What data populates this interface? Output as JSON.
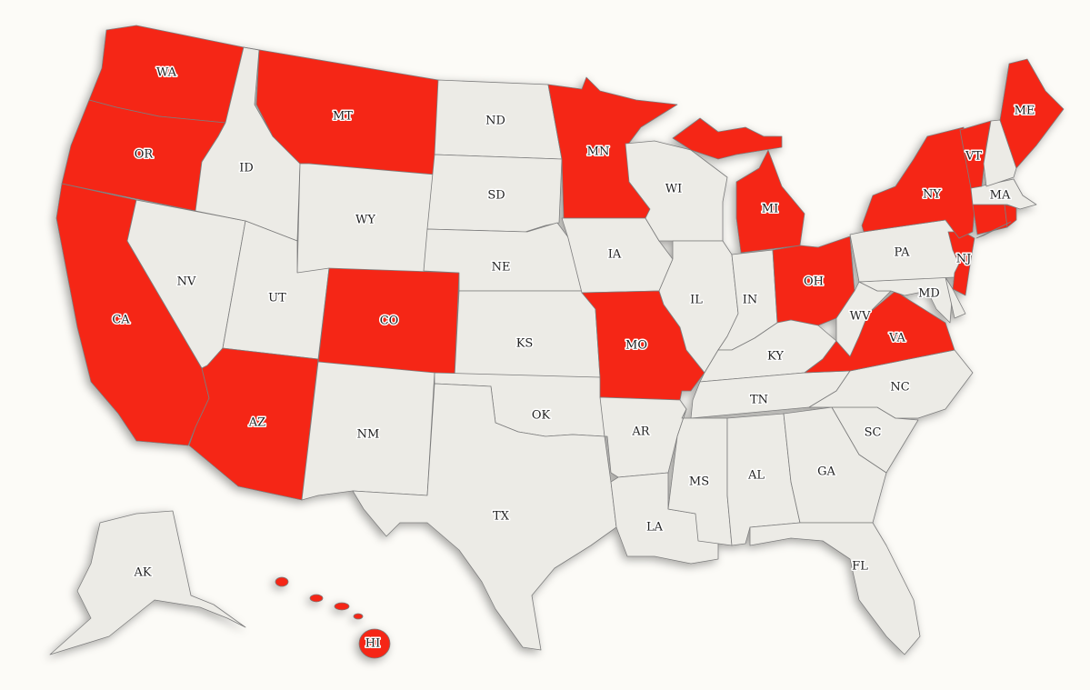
{
  "map": {
    "colors": {
      "selected": "#f52718",
      "unselected": "#ecebe6",
      "border": "#7d7d7d",
      "background": "#fcfbf7"
    },
    "states": [
      {
        "code": "WA",
        "label": "WA",
        "selected": true
      },
      {
        "code": "OR",
        "label": "OR",
        "selected": true
      },
      {
        "code": "CA",
        "label": "CA",
        "selected": true
      },
      {
        "code": "NV",
        "label": "NV",
        "selected": false
      },
      {
        "code": "ID",
        "label": "ID",
        "selected": false
      },
      {
        "code": "MT",
        "label": "MT",
        "selected": true
      },
      {
        "code": "WY",
        "label": "WY",
        "selected": false
      },
      {
        "code": "UT",
        "label": "UT",
        "selected": false
      },
      {
        "code": "CO",
        "label": "CO",
        "selected": true
      },
      {
        "code": "AZ",
        "label": "AZ",
        "selected": true
      },
      {
        "code": "NM",
        "label": "NM",
        "selected": false
      },
      {
        "code": "ND",
        "label": "ND",
        "selected": false
      },
      {
        "code": "SD",
        "label": "SD",
        "selected": false
      },
      {
        "code": "NE",
        "label": "NE",
        "selected": false
      },
      {
        "code": "KS",
        "label": "KS",
        "selected": false
      },
      {
        "code": "OK",
        "label": "OK",
        "selected": false
      },
      {
        "code": "TX",
        "label": "TX",
        "selected": false
      },
      {
        "code": "MN",
        "label": "MN",
        "selected": true
      },
      {
        "code": "IA",
        "label": "IA",
        "selected": false
      },
      {
        "code": "MO",
        "label": "MO",
        "selected": true
      },
      {
        "code": "AR",
        "label": "AR",
        "selected": false
      },
      {
        "code": "LA",
        "label": "LA",
        "selected": false
      },
      {
        "code": "WI",
        "label": "WI",
        "selected": false
      },
      {
        "code": "IL",
        "label": "IL",
        "selected": false
      },
      {
        "code": "MI",
        "label": "MI",
        "selected": true
      },
      {
        "code": "IN",
        "label": "IN",
        "selected": false
      },
      {
        "code": "OH",
        "label": "OH",
        "selected": true
      },
      {
        "code": "KY",
        "label": "KY",
        "selected": false
      },
      {
        "code": "TN",
        "label": "TN",
        "selected": false
      },
      {
        "code": "MS",
        "label": "MS",
        "selected": false
      },
      {
        "code": "AL",
        "label": "AL",
        "selected": false
      },
      {
        "code": "GA",
        "label": "GA",
        "selected": false
      },
      {
        "code": "FL",
        "label": "FL",
        "selected": false
      },
      {
        "code": "SC",
        "label": "SC",
        "selected": false
      },
      {
        "code": "NC",
        "label": "NC",
        "selected": false
      },
      {
        "code": "VA",
        "label": "VA",
        "selected": true
      },
      {
        "code": "WV",
        "label": "WV",
        "selected": false
      },
      {
        "code": "MD",
        "label": "MD",
        "selected": false
      },
      {
        "code": "DE",
        "label": "",
        "selected": false
      },
      {
        "code": "PA",
        "label": "PA",
        "selected": false
      },
      {
        "code": "NJ",
        "label": "NJ",
        "selected": true
      },
      {
        "code": "NY",
        "label": "NY",
        "selected": true
      },
      {
        "code": "CT",
        "label": "",
        "selected": true
      },
      {
        "code": "RI",
        "label": "",
        "selected": true
      },
      {
        "code": "MA",
        "label": "MA",
        "selected": false
      },
      {
        "code": "VT",
        "label": "VT",
        "selected": true
      },
      {
        "code": "NH",
        "label": "",
        "selected": false
      },
      {
        "code": "ME",
        "label": "ME",
        "selected": true
      },
      {
        "code": "AK",
        "label": "AK",
        "selected": false
      },
      {
        "code": "HI",
        "label": "HI",
        "selected": true
      }
    ]
  }
}
